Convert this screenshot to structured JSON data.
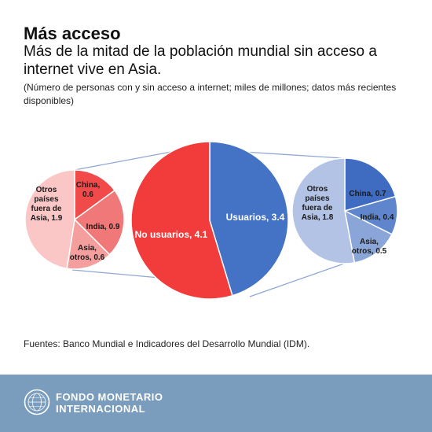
{
  "header": {
    "title": "Más acceso",
    "subtitle": "Más de la mitad de la población mundial sin acceso a internet vive en Asia.",
    "note": "(Número de personas con y sin acceso a internet; miles de millones; datos más recientes disponibles)"
  },
  "chart_data": [
    {
      "type": "pie",
      "slices": [
        {
          "label": "Usuarios, 3.4",
          "value": 3.4,
          "color": "#4472c4"
        },
        {
          "label": "No usuarios, 4.1",
          "value": 4.1,
          "color": "#f23b3b"
        }
      ]
    },
    {
      "type": "pie",
      "slices": [
        {
          "label": "China, 0.6",
          "value": 0.6,
          "color": "#f04a4a"
        },
        {
          "label": "India, 0.9",
          "value": 0.9,
          "color": "#f07878"
        },
        {
          "label": "Asia, otros, 0.6",
          "value": 0.6,
          "color": "#f49e9e"
        },
        {
          "label": "Otros países fuera de Asia, 1.9",
          "value": 1.9,
          "color": "#fbc6c6"
        }
      ]
    },
    {
      "type": "pie",
      "slices": [
        {
          "label": "China, 0.7",
          "value": 0.7,
          "color": "#3f6cc0"
        },
        {
          "label": "India, 0.4",
          "value": 0.4,
          "color": "#5f86cc"
        },
        {
          "label": "Asia, otros, 0.5",
          "value": 0.5,
          "color": "#8aa6d8"
        },
        {
          "label": "Otros países fuera de Asia, 1.8",
          "value": 1.8,
          "color": "#b3c3e5"
        }
      ]
    }
  ],
  "source": "Fuentes: Banco Mundial e Indicadores del Desarrollo Mundial (IDM).",
  "footer": {
    "org_line1": "FONDO MONETARIO",
    "org_line2": "INTERNACIONAL",
    "logo_icon": "imf-seal-icon"
  }
}
